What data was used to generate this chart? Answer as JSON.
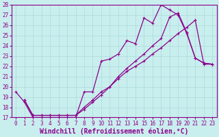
{
  "xlabel": "Windchill (Refroidissement éolien,°C)",
  "xlim": [
    -0.5,
    23.5
  ],
  "ylim": [
    17,
    28
  ],
  "xticks": [
    0,
    1,
    2,
    3,
    4,
    5,
    6,
    7,
    8,
    9,
    10,
    11,
    12,
    13,
    14,
    15,
    16,
    17,
    18,
    19,
    20,
    21,
    22,
    23
  ],
  "yticks": [
    17,
    18,
    19,
    20,
    21,
    22,
    23,
    24,
    25,
    26,
    27,
    28
  ],
  "background_color": "#c9eeee",
  "grid_color": "#b0dddd",
  "line_color": "#8b008b",
  "line1_x": [
    0,
    1,
    2,
    3,
    4,
    5,
    6,
    7,
    8,
    9,
    10,
    11,
    12,
    13,
    14,
    15,
    16,
    17,
    18,
    19,
    20,
    21,
    22,
    23
  ],
  "line1_y": [
    19.5,
    18.5,
    17.0,
    17.0,
    17.0,
    17.0,
    17.0,
    17.0,
    19.5,
    19.5,
    22.5,
    22.7,
    23.2,
    24.5,
    24.2,
    26.7,
    26.2,
    28.0,
    27.5,
    27.0,
    25.2,
    22.8,
    22.3,
    22.2
  ],
  "line2_x": [
    1,
    2,
    3,
    4,
    5,
    6,
    7,
    8,
    9,
    10,
    11,
    12,
    13,
    14,
    15,
    16,
    17,
    18,
    19,
    20,
    21,
    22,
    23
  ],
  "line2_y": [
    18.7,
    17.2,
    17.2,
    17.2,
    17.2,
    17.2,
    17.2,
    18.0,
    18.7,
    19.5,
    20.0,
    20.8,
    21.5,
    22.0,
    22.5,
    23.2,
    23.8,
    24.5,
    25.2,
    25.8,
    26.5,
    22.2,
    22.2
  ],
  "line3_x": [
    1,
    2,
    3,
    4,
    5,
    6,
    7,
    8,
    9,
    10,
    11,
    12,
    13,
    14,
    15,
    16,
    17,
    18,
    19,
    20,
    21,
    22,
    23
  ],
  "line3_y": [
    18.7,
    17.2,
    17.2,
    17.2,
    17.2,
    17.2,
    17.2,
    17.8,
    18.5,
    19.2,
    20.0,
    21.0,
    21.8,
    22.5,
    23.2,
    24.0,
    24.7,
    26.8,
    27.2,
    25.3,
    22.8,
    22.3,
    22.2
  ],
  "tick_fontsize": 5.5,
  "label_fontsize": 7.0,
  "marker_size": 2.0,
  "line_width": 0.9
}
